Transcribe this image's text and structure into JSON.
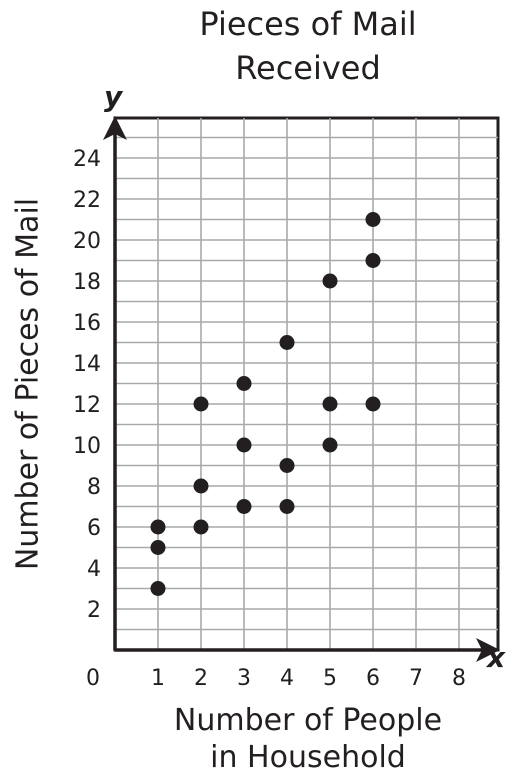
{
  "chart_data": {
    "type": "scatter",
    "title_lines": [
      "Pieces of Mail",
      "Received"
    ],
    "xlabel_lines": [
      "Number of People",
      "in Household"
    ],
    "ylabel": "Number of Pieces of Mail",
    "x_axis_letter": "x",
    "y_axis_letter": "y",
    "origin_label": "0",
    "x_ticks": [
      1,
      2,
      3,
      4,
      5,
      6,
      7,
      8
    ],
    "y_ticks": [
      2,
      4,
      6,
      8,
      10,
      12,
      14,
      16,
      18,
      20,
      22,
      24
    ],
    "xlim": [
      0,
      9
    ],
    "ylim": [
      0,
      26
    ],
    "grid": true,
    "points": [
      {
        "x": 1,
        "y": 3
      },
      {
        "x": 1,
        "y": 5
      },
      {
        "x": 1,
        "y": 6
      },
      {
        "x": 2,
        "y": 6
      },
      {
        "x": 2,
        "y": 8
      },
      {
        "x": 2,
        "y": 12
      },
      {
        "x": 3,
        "y": 7
      },
      {
        "x": 3,
        "y": 10
      },
      {
        "x": 3,
        "y": 13
      },
      {
        "x": 4,
        "y": 7
      },
      {
        "x": 4,
        "y": 9
      },
      {
        "x": 4,
        "y": 15
      },
      {
        "x": 5,
        "y": 10
      },
      {
        "x": 5,
        "y": 12
      },
      {
        "x": 5,
        "y": 18
      },
      {
        "x": 6,
        "y": 12
      },
      {
        "x": 6,
        "y": 19
      },
      {
        "x": 6,
        "y": 21
      }
    ],
    "colors": {
      "ink": "#231f20",
      "grid": "#a7a9ac",
      "background": "#ffffff"
    }
  }
}
